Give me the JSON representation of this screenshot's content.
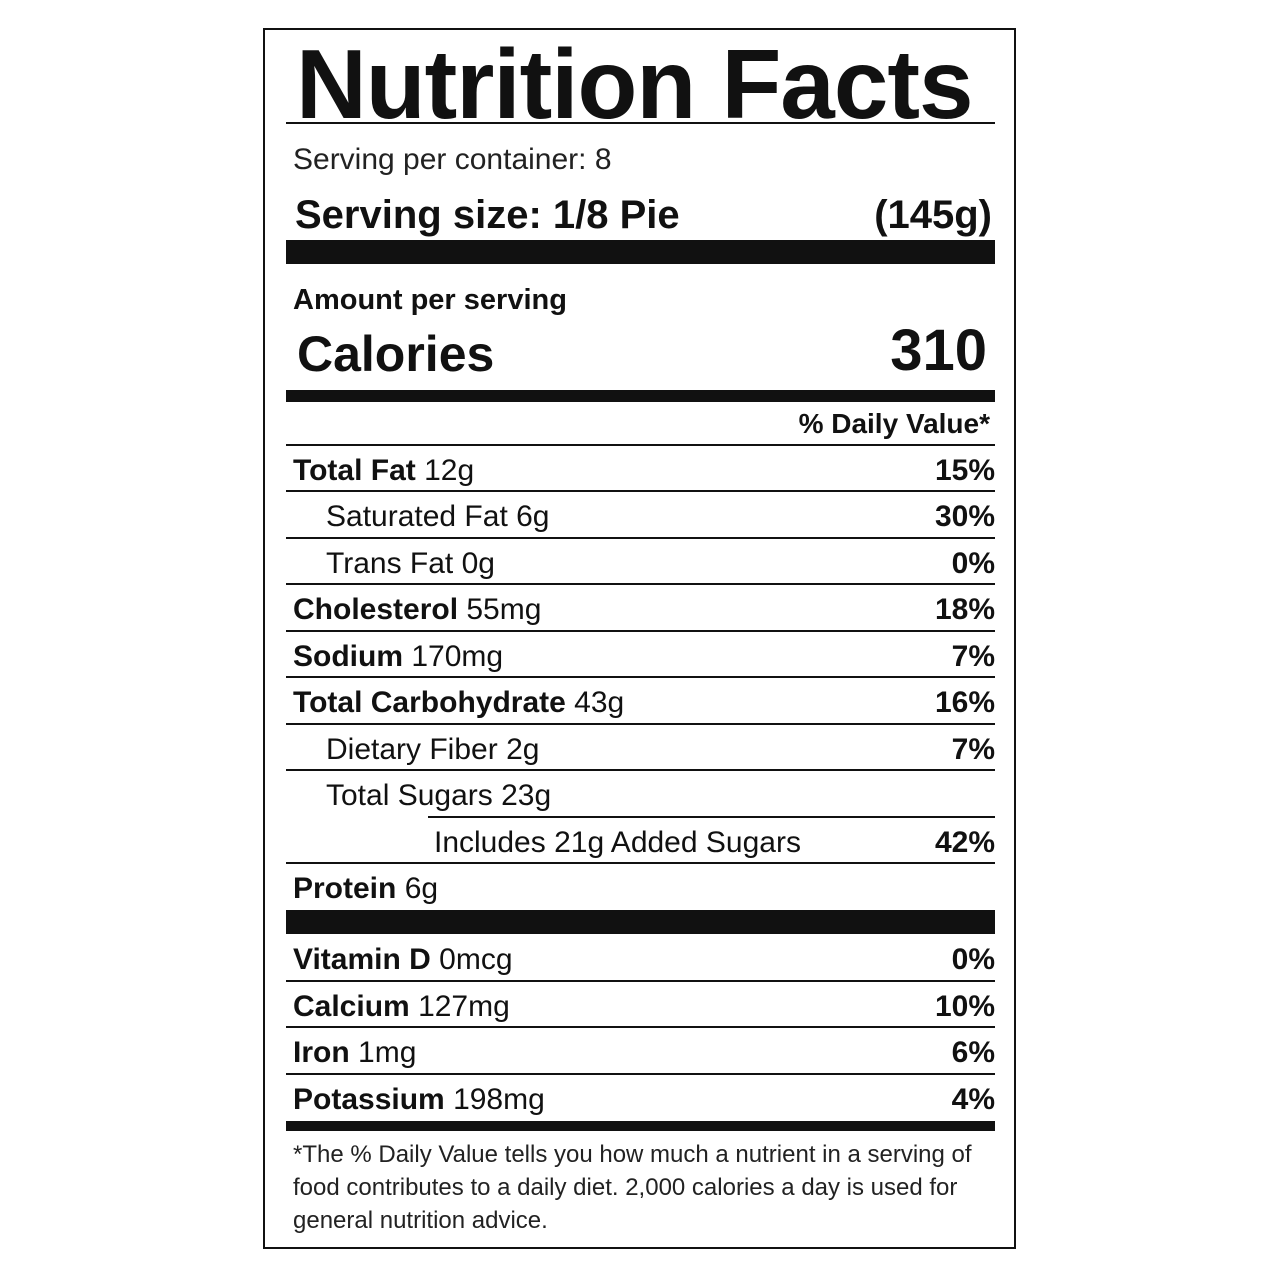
{
  "title": "Nutrition Facts",
  "servings_per_container": "Serving per container: 8",
  "serving_size_label": "Serving size: 1/8 Pie",
  "serving_size_weight": "(145g)",
  "amount_per_serving": "Amount per serving",
  "calories_label": "Calories",
  "calories_value": "310",
  "daily_value_header": "% Daily Value*",
  "nutrients": [
    {
      "name": "Total Fat",
      "amount": "12g",
      "dv": "15%"
    },
    {
      "name": "Saturated Fat",
      "amount": "6g",
      "dv": "30%"
    },
    {
      "name": "Trans Fat",
      "amount": "0g",
      "dv": "0%"
    },
    {
      "name": "Cholesterol",
      "amount": "55mg",
      "dv": "18%"
    },
    {
      "name": "Sodium",
      "amount": "170mg",
      "dv": "7%"
    },
    {
      "name": "Total Carbohydrate",
      "amount": "43g",
      "dv": "16%"
    },
    {
      "name": "Dietary Fiber",
      "amount": "2g",
      "dv": "7%"
    },
    {
      "name": "Total Sugars",
      "amount": "23g",
      "dv": ""
    },
    {
      "name": "Includes 21g Added Sugars",
      "amount": "",
      "dv": "42%"
    },
    {
      "name": "Protein",
      "amount": "6g",
      "dv": ""
    }
  ],
  "vitamins": [
    {
      "name": "Vitamin D",
      "amount": "0mcg",
      "dv": "0%"
    },
    {
      "name": "Calcium",
      "amount": "127mg",
      "dv": "10%"
    },
    {
      "name": "Iron",
      "amount": "1mg",
      "dv": "6%"
    },
    {
      "name": "Potassium",
      "amount": "198mg",
      "dv": "4%"
    }
  ],
  "footnote": "*The % Daily Value tells you how much a nutrient in a serving of food contributes to a daily diet. 2,000 calories a day is used for general nutrition advice."
}
